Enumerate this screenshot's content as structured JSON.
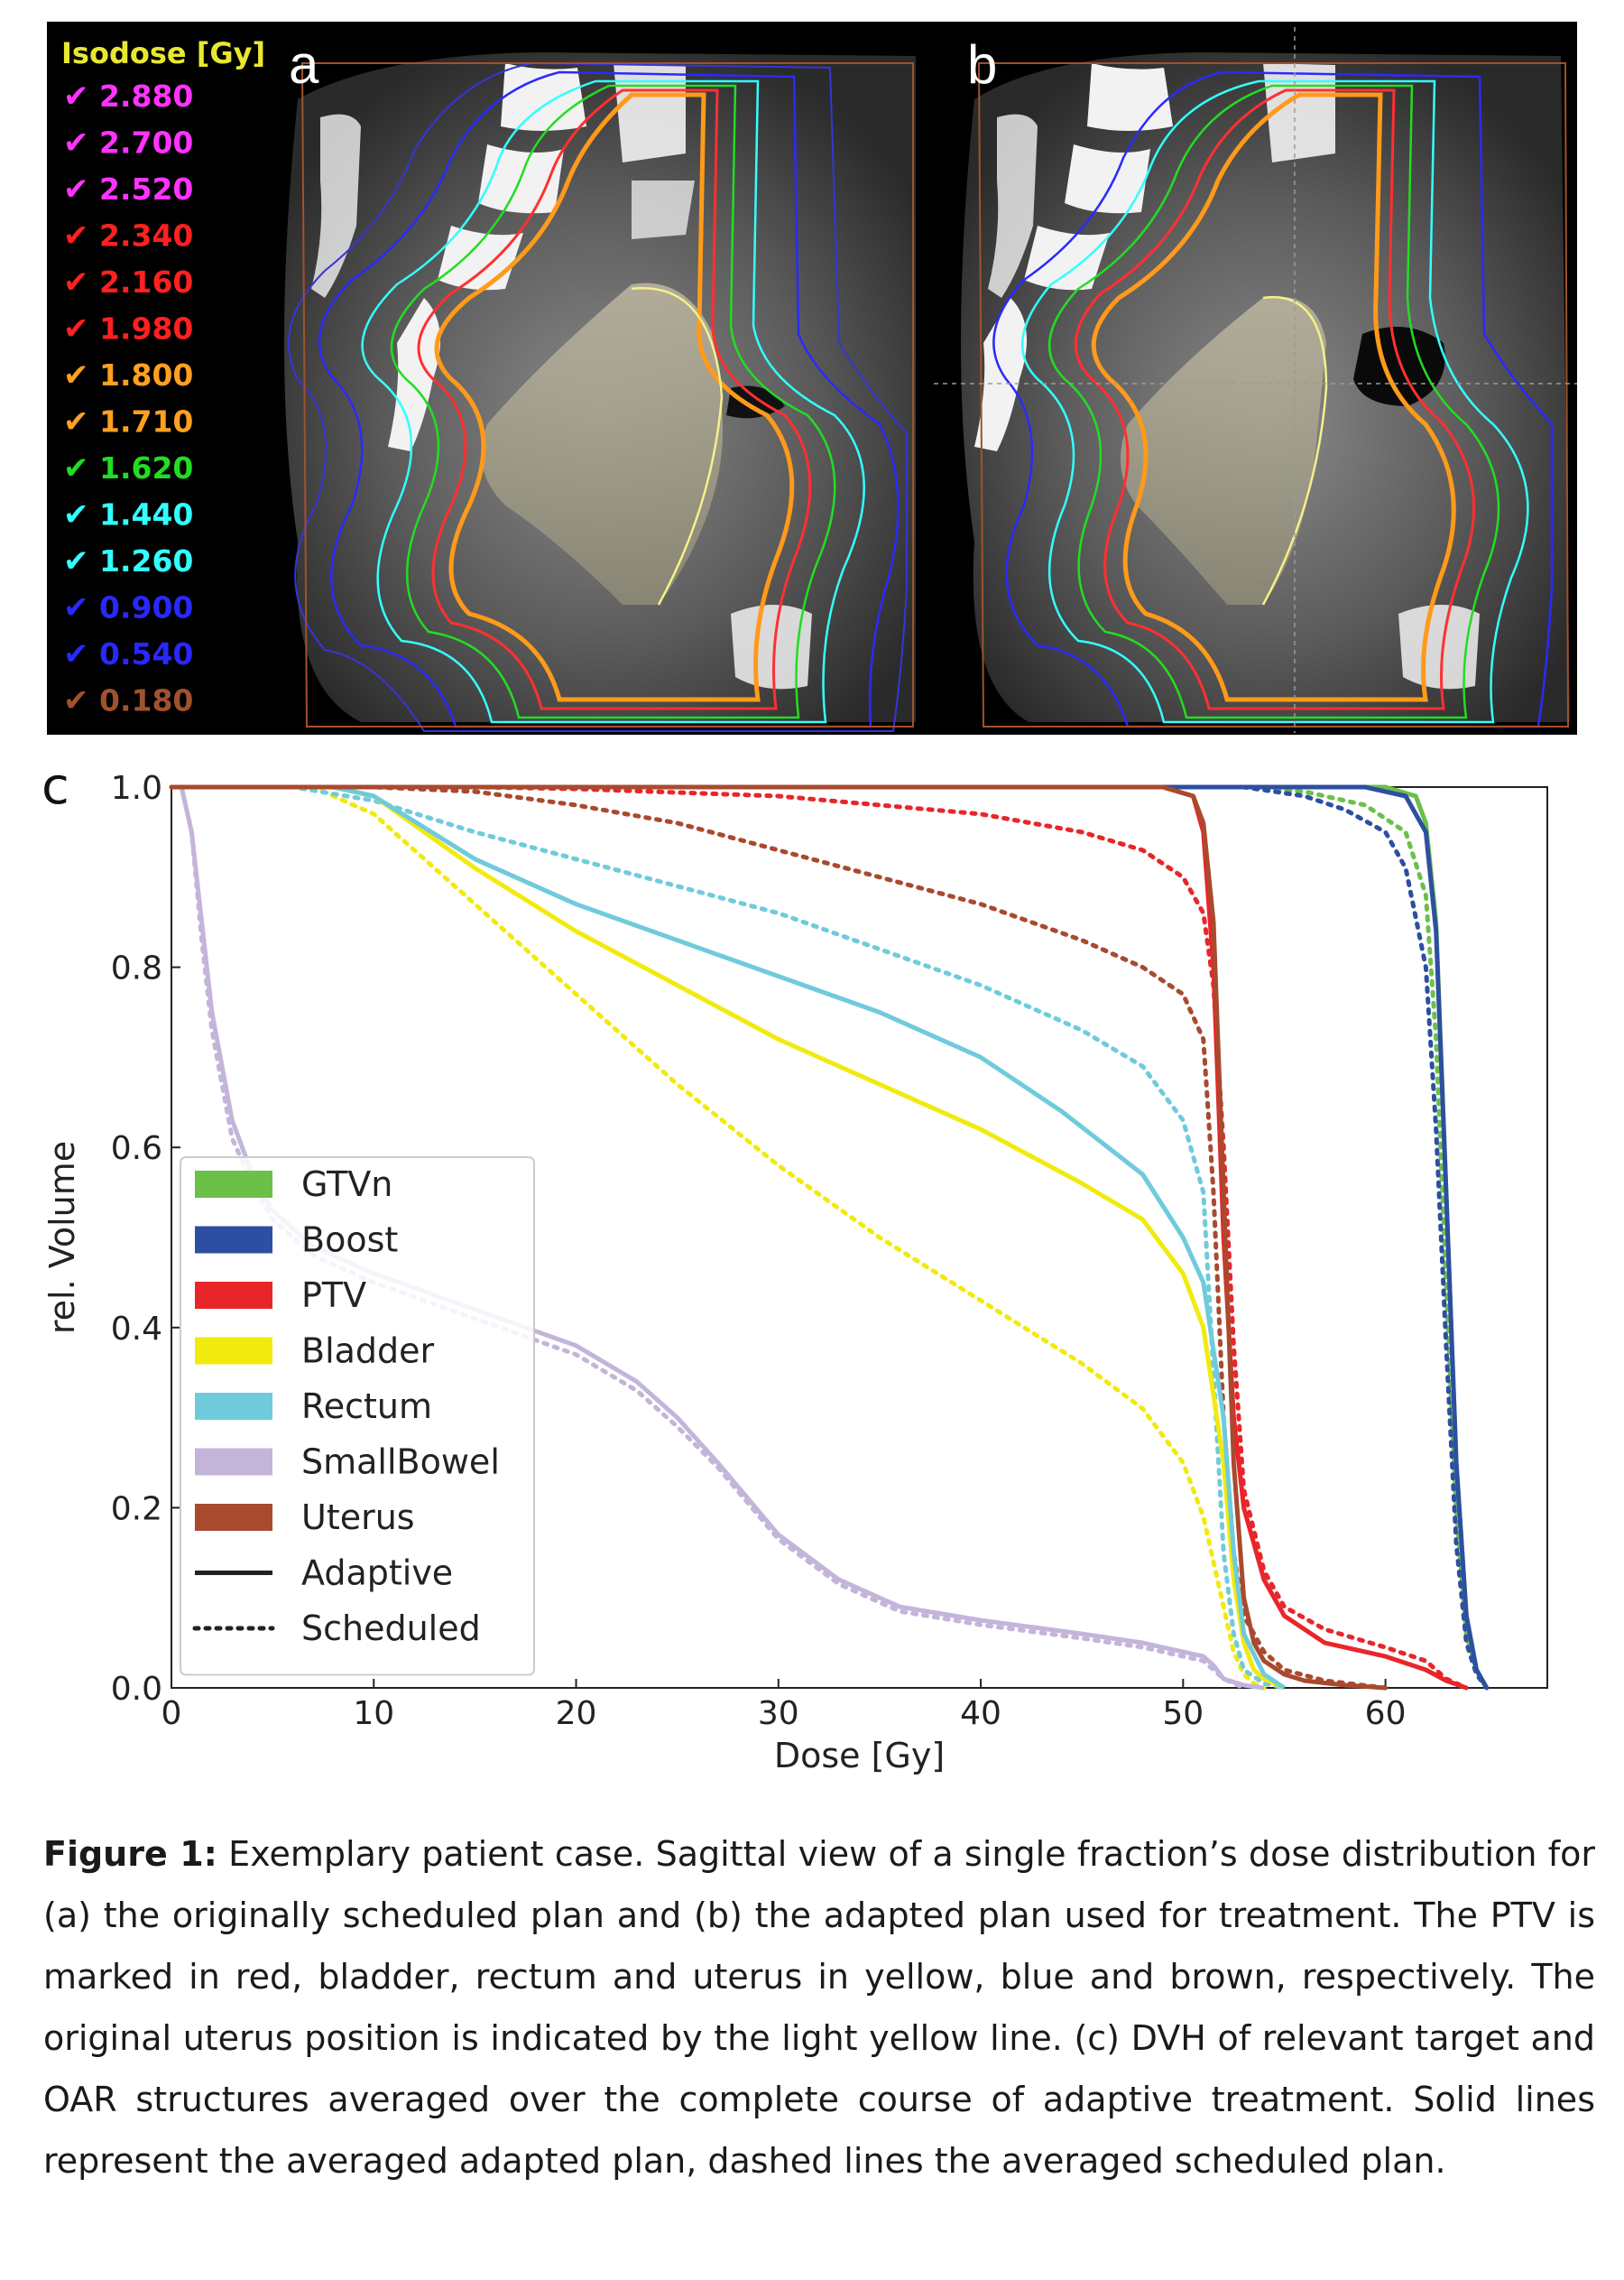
{
  "panels": {
    "a_label": "a",
    "b_label": "b",
    "c_label": "c"
  },
  "isodose_legend": {
    "title": "Isodose [Gy]",
    "check_glyph": "✔",
    "items": [
      {
        "value": "2.880",
        "color": "#ff33ff"
      },
      {
        "value": "2.700",
        "color": "#ff33ff"
      },
      {
        "value": "2.520",
        "color": "#ff33ff"
      },
      {
        "value": "2.340",
        "color": "#ff2020"
      },
      {
        "value": "2.160",
        "color": "#ff2020"
      },
      {
        "value": "1.980",
        "color": "#ff2020"
      },
      {
        "value": "1.800",
        "color": "#ffa020"
      },
      {
        "value": "1.710",
        "color": "#ffa020"
      },
      {
        "value": "1.620",
        "color": "#22dd22"
      },
      {
        "value": "1.440",
        "color": "#33ffff"
      },
      {
        "value": "1.260",
        "color": "#33ffff"
      },
      {
        "value": "0.900",
        "color": "#2828ff"
      },
      {
        "value": "0.540",
        "color": "#2828ff"
      },
      {
        "value": "0.180",
        "color": "#a0522d"
      }
    ]
  },
  "chart_data": {
    "type": "line",
    "xlabel": "Dose [Gy]",
    "ylabel": "rel. Volume",
    "xlim": [
      0,
      68
    ],
    "ylim": [
      0,
      1.0
    ],
    "xticks": [
      "0",
      "10",
      "20",
      "30",
      "40",
      "50",
      "60"
    ],
    "yticks": [
      "0.0",
      "0.2",
      "0.4",
      "0.6",
      "0.8",
      "1.0"
    ],
    "legend_position": "left",
    "legend": [
      {
        "label": "GTVn",
        "color": "#6cc04a",
        "kind": "patch"
      },
      {
        "label": "Boost",
        "color": "#2d4fa1",
        "kind": "patch"
      },
      {
        "label": "PTV",
        "color": "#e8262a",
        "kind": "patch"
      },
      {
        "label": "Bladder",
        "color": "#f2ea0f",
        "kind": "patch"
      },
      {
        "label": "Rectum",
        "color": "#6fcbdc",
        "kind": "patch"
      },
      {
        "label": "SmallBowel",
        "color": "#c3b5da",
        "kind": "patch"
      },
      {
        "label": "Uterus",
        "color": "#a94a2e",
        "kind": "patch"
      },
      {
        "label": "Adaptive",
        "color": "#222222",
        "kind": "solid"
      },
      {
        "label": "Scheduled",
        "color": "#222222",
        "kind": "dotted"
      }
    ],
    "series": [
      {
        "name": "GTVn",
        "plan": "Adaptive",
        "color": "#6cc04a",
        "style": "solid",
        "x": [
          0,
          60,
          61.5,
          62,
          62.5,
          63,
          63.5,
          64,
          64.5,
          65
        ],
        "y": [
          1.0,
          1.0,
          0.99,
          0.96,
          0.85,
          0.55,
          0.25,
          0.08,
          0.02,
          0.0
        ]
      },
      {
        "name": "GTVn",
        "plan": "Scheduled",
        "color": "#6cc04a",
        "style": "dotted",
        "x": [
          0,
          53,
          56,
          59,
          61,
          62,
          62.5,
          63,
          63.5,
          64,
          64.5,
          65
        ],
        "y": [
          1.0,
          1.0,
          0.995,
          0.98,
          0.95,
          0.88,
          0.72,
          0.45,
          0.2,
          0.06,
          0.02,
          0.0
        ]
      },
      {
        "name": "Boost",
        "plan": "Adaptive",
        "color": "#2d4fa1",
        "style": "solid",
        "x": [
          0,
          59,
          61,
          62,
          62.5,
          63,
          63.5,
          64,
          64.5,
          65
        ],
        "y": [
          1.0,
          1.0,
          0.99,
          0.95,
          0.84,
          0.55,
          0.25,
          0.08,
          0.02,
          0.0
        ]
      },
      {
        "name": "Boost",
        "plan": "Scheduled",
        "color": "#2d4fa1",
        "style": "dotted",
        "x": [
          0,
          53,
          56,
          58,
          60,
          61,
          62,
          62.5,
          63,
          63.5,
          64,
          64.5,
          65
        ],
        "y": [
          1.0,
          1.0,
          0.99,
          0.975,
          0.95,
          0.91,
          0.8,
          0.62,
          0.38,
          0.16,
          0.05,
          0.015,
          0.0
        ]
      },
      {
        "name": "PTV",
        "plan": "Adaptive",
        "color": "#e8262a",
        "style": "solid",
        "x": [
          0,
          49,
          50.5,
          51,
          51.5,
          52,
          52.5,
          53,
          54,
          55,
          57,
          60,
          62,
          63,
          64
        ],
        "y": [
          1.0,
          1.0,
          0.99,
          0.95,
          0.8,
          0.5,
          0.3,
          0.2,
          0.12,
          0.08,
          0.05,
          0.035,
          0.02,
          0.008,
          0.0
        ]
      },
      {
        "name": "PTV",
        "plan": "Scheduled",
        "color": "#e8262a",
        "style": "dotted",
        "x": [
          0,
          15,
          20,
          30,
          40,
          45,
          48,
          50,
          51,
          51.5,
          52,
          52.5,
          53,
          54,
          55,
          57,
          60,
          62,
          63,
          64
        ],
        "y": [
          1.0,
          1.0,
          0.998,
          0.99,
          0.97,
          0.95,
          0.93,
          0.9,
          0.86,
          0.78,
          0.6,
          0.38,
          0.22,
          0.13,
          0.09,
          0.065,
          0.045,
          0.03,
          0.01,
          0.0
        ]
      },
      {
        "name": "Bladder",
        "plan": "Adaptive",
        "color": "#f2ea0f",
        "style": "solid",
        "x": [
          0,
          8,
          10,
          15,
          20,
          25,
          30,
          35,
          40,
          45,
          48,
          50,
          51,
          52,
          52.5,
          53,
          53.5,
          54,
          55
        ],
        "y": [
          1.0,
          1.0,
          0.99,
          0.91,
          0.84,
          0.78,
          0.72,
          0.67,
          0.62,
          0.56,
          0.52,
          0.46,
          0.4,
          0.25,
          0.12,
          0.05,
          0.02,
          0.01,
          0.0
        ]
      },
      {
        "name": "Bladder",
        "plan": "Scheduled",
        "color": "#f2ea0f",
        "style": "dotted",
        "x": [
          0,
          7,
          10,
          15,
          20,
          25,
          30,
          35,
          40,
          45,
          48,
          50,
          51,
          52,
          52.5,
          53,
          53.5,
          54
        ],
        "y": [
          1.0,
          1.0,
          0.97,
          0.87,
          0.77,
          0.67,
          0.58,
          0.5,
          0.43,
          0.36,
          0.31,
          0.25,
          0.19,
          0.09,
          0.04,
          0.015,
          0.005,
          0.0
        ]
      },
      {
        "name": "Rectum",
        "plan": "Adaptive",
        "color": "#6fcbdc",
        "style": "solid",
        "x": [
          0,
          8,
          10,
          15,
          20,
          25,
          30,
          35,
          40,
          44,
          48,
          50,
          51,
          52,
          52.5,
          53,
          54,
          55
        ],
        "y": [
          1.0,
          1.0,
          0.99,
          0.92,
          0.87,
          0.83,
          0.79,
          0.75,
          0.7,
          0.64,
          0.57,
          0.5,
          0.45,
          0.3,
          0.15,
          0.06,
          0.015,
          0.0
        ]
      },
      {
        "name": "Rectum",
        "plan": "Scheduled",
        "color": "#6fcbdc",
        "style": "dotted",
        "x": [
          0,
          6,
          10,
          15,
          20,
          25,
          30,
          35,
          40,
          45,
          48,
          50,
          51,
          51.5,
          52,
          52.5,
          53,
          54,
          55
        ],
        "y": [
          1.0,
          1.0,
          0.985,
          0.95,
          0.92,
          0.89,
          0.86,
          0.82,
          0.78,
          0.73,
          0.69,
          0.63,
          0.55,
          0.35,
          0.15,
          0.06,
          0.02,
          0.005,
          0.0
        ]
      },
      {
        "name": "SmallBowel",
        "plan": "Adaptive",
        "color": "#c3b5da",
        "style": "solid",
        "x": [
          0.5,
          1.0,
          1.5,
          2,
          3,
          4,
          5,
          7,
          10,
          15,
          20,
          23,
          25,
          27,
          30,
          33,
          36,
          40,
          45,
          48,
          50,
          51,
          51.5,
          52,
          53,
          54
        ],
        "y": [
          1.0,
          0.95,
          0.85,
          0.75,
          0.63,
          0.57,
          0.53,
          0.49,
          0.46,
          0.42,
          0.38,
          0.34,
          0.3,
          0.25,
          0.17,
          0.12,
          0.09,
          0.075,
          0.06,
          0.05,
          0.04,
          0.035,
          0.025,
          0.01,
          0.003,
          0.0
        ]
      },
      {
        "name": "SmallBowel",
        "plan": "Scheduled",
        "color": "#c3b5da",
        "style": "dotted",
        "x": [
          0.5,
          1.0,
          1.5,
          2,
          3,
          4,
          5,
          7,
          10,
          15,
          20,
          23,
          25,
          27,
          30,
          33,
          36,
          40,
          45,
          48,
          50,
          51,
          52,
          53
        ],
        "y": [
          1.0,
          0.95,
          0.83,
          0.73,
          0.61,
          0.56,
          0.52,
          0.48,
          0.45,
          0.41,
          0.37,
          0.33,
          0.29,
          0.245,
          0.165,
          0.115,
          0.085,
          0.07,
          0.055,
          0.045,
          0.035,
          0.03,
          0.01,
          0.0
        ]
      },
      {
        "name": "Uterus",
        "plan": "Adaptive",
        "color": "#a94a2e",
        "style": "solid",
        "x": [
          0,
          49,
          50.5,
          51,
          51.5,
          52,
          52.5,
          53,
          53.5,
          54,
          55,
          56,
          58,
          60
        ],
        "y": [
          1.0,
          1.0,
          0.99,
          0.96,
          0.85,
          0.55,
          0.25,
          0.1,
          0.05,
          0.03,
          0.015,
          0.008,
          0.003,
          0.0
        ]
      },
      {
        "name": "Uterus",
        "plan": "Scheduled",
        "color": "#a94a2e",
        "style": "dotted",
        "x": [
          0,
          10,
          15,
          20,
          25,
          30,
          35,
          40,
          45,
          48,
          50,
          51,
          51.5,
          52,
          52.5,
          53,
          54,
          55,
          57,
          60
        ],
        "y": [
          1.0,
          1.0,
          0.995,
          0.98,
          0.96,
          0.93,
          0.9,
          0.87,
          0.83,
          0.8,
          0.77,
          0.72,
          0.55,
          0.3,
          0.15,
          0.08,
          0.04,
          0.02,
          0.008,
          0.0
        ]
      }
    ]
  },
  "caption": {
    "label": "Figure 1:",
    "text": " Exemplary patient case. Sagittal view of a single fraction’s dose distribution for (a) the originally scheduled plan and (b) the adapted plan used for treatment. The PTV is marked in red, bladder, rectum and uterus in yellow, blue and brown, respectively. The original uterus position is indicated by the light yellow line. (c) DVH of relevant target and OAR structures averaged over the complete course of adaptive treatment. Solid lines represent the averaged adapted plan, dashed lines the averaged scheduled plan."
  }
}
